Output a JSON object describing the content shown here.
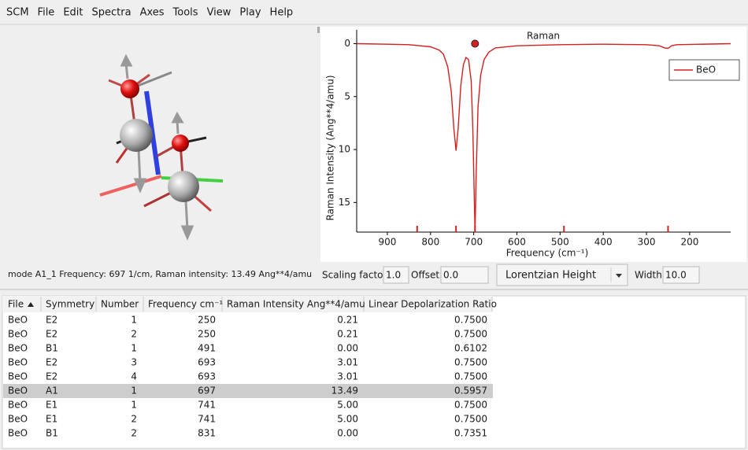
{
  "menu": [
    "SCM",
    "File",
    "Edit",
    "Spectra",
    "Axes",
    "Tools",
    "View",
    "Play",
    "Help"
  ],
  "status": "mode A1_1 Frequency:  697 1/cm, Raman intensity:  13.49 Ang**4/amu",
  "chart_data": {
    "type": "line",
    "title": "Raman",
    "xlabel": "Frequency (cm⁻¹)",
    "ylabel": "Raman Intensity (Ang**4/amu)",
    "x": [
      971,
      900,
      850,
      800,
      780,
      770,
      760,
      752,
      746,
      741,
      736,
      730,
      724,
      718,
      712,
      706,
      702,
      699,
      697,
      694,
      690,
      684,
      676,
      665,
      650,
      600,
      500,
      400,
      300,
      270,
      258,
      250,
      242,
      230,
      105
    ],
    "series": [
      {
        "name": "BeO",
        "color": "#d42020",
        "values": [
          0,
          0.05,
          0.1,
          0.3,
          0.6,
          1.0,
          2.2,
          4.5,
          8,
          10.1,
          8,
          4,
          2.0,
          1.3,
          1.5,
          3.5,
          8,
          14,
          17.8,
          12,
          6,
          3,
          1.5,
          0.8,
          0.4,
          0.2,
          0.1,
          0.05,
          0.1,
          0.2,
          0.4,
          0.45,
          0.2,
          0.1,
          0
        ]
      }
    ],
    "xlim": [
      971,
      105
    ],
    "ylim": [
      17.8,
      -1.3
    ],
    "xticks": [
      900,
      800,
      700,
      600,
      500,
      400,
      300,
      200
    ],
    "yticks": [
      0,
      5,
      10,
      15
    ],
    "legend": "upper right",
    "sticks": [
      831,
      741,
      697,
      491,
      250
    ],
    "marker": {
      "x": 697,
      "y": 0
    }
  },
  "controls": {
    "scaling_label": "Scaling factor:",
    "scaling": "1.0",
    "offset_label": "Offset:",
    "offset": "0.0",
    "lineshape": "Lorentzian Height",
    "width_label": "Width:",
    "width": "10.0"
  },
  "table": {
    "headers": [
      "File",
      "Symmetry",
      "Number",
      "Frequency cm⁻¹",
      "Raman Intensity Ang**4/amu",
      "Linear Depolarization Ratio"
    ],
    "selected_row": 5,
    "rows": [
      [
        "BeO",
        "E2",
        "1",
        "250",
        "0.21",
        "0.7500"
      ],
      [
        "BeO",
        "E2",
        "2",
        "250",
        "0.21",
        "0.7500"
      ],
      [
        "BeO",
        "B1",
        "1",
        "491",
        "0.00",
        "0.6102"
      ],
      [
        "BeO",
        "E2",
        "3",
        "693",
        "3.01",
        "0.7500"
      ],
      [
        "BeO",
        "E2",
        "4",
        "693",
        "3.01",
        "0.7500"
      ],
      [
        "BeO",
        "A1",
        "1",
        "697",
        "13.49",
        "0.5957"
      ],
      [
        "BeO",
        "E1",
        "1",
        "741",
        "5.00",
        "0.7500"
      ],
      [
        "BeO",
        "E1",
        "2",
        "741",
        "5.00",
        "0.7500"
      ],
      [
        "BeO",
        "B1",
        "2",
        "831",
        "0.00",
        "0.7351"
      ]
    ]
  }
}
